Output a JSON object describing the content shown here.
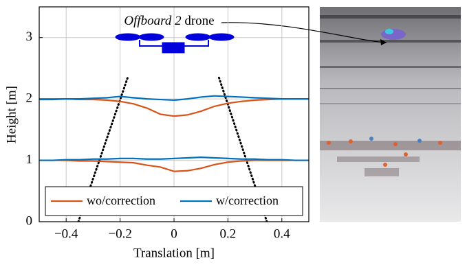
{
  "chart_data": {
    "type": "line",
    "annotation": [
      "Offboard 2",
      "drone"
    ],
    "xlabel": "Translation [m]",
    "ylabel": "Height [m]",
    "x": [
      -0.5,
      -0.45,
      -0.4,
      -0.35,
      -0.3,
      -0.25,
      -0.2,
      -0.15,
      -0.1,
      -0.05,
      0,
      0.05,
      0.1,
      0.15,
      0.2,
      0.25,
      0.3,
      0.35,
      0.4,
      0.45,
      0.5
    ],
    "series": [
      {
        "name": "wo/correction",
        "color": "#d95319",
        "lines": [
          {
            "values": [
              2.0,
              2.0,
              2.0,
              1.99,
              1.99,
              1.98,
              1.96,
              1.92,
              1.85,
              1.75,
              1.72,
              1.74,
              1.8,
              1.88,
              1.93,
              1.96,
              1.98,
              1.99,
              2.0,
              2.0,
              2.0
            ]
          },
          {
            "values": [
              1.0,
              1.0,
              1.0,
              0.99,
              0.99,
              0.98,
              0.97,
              0.96,
              0.92,
              0.89,
              0.82,
              0.83,
              0.87,
              0.93,
              0.97,
              0.99,
              1.0,
              1.0,
              1.0,
              1.0,
              1.0
            ]
          }
        ]
      },
      {
        "name": "w/correction",
        "color": "#0072bd",
        "lines": [
          {
            "values": [
              1.99,
              1.99,
              2.0,
              2.0,
              2.01,
              2.02,
              2.04,
              2.02,
              2.0,
              1.99,
              1.98,
              2.0,
              2.03,
              2.05,
              2.04,
              2.03,
              2.02,
              2.01,
              2.0,
              2.0,
              2.0
            ]
          },
          {
            "values": [
              1.0,
              1.0,
              1.01,
              1.01,
              1.02,
              1.02,
              1.03,
              1.03,
              1.02,
              1.02,
              1.03,
              1.04,
              1.05,
              1.04,
              1.03,
              1.02,
              1.02,
              1.01,
              1.01,
              1.0,
              1.0
            ]
          }
        ]
      }
    ],
    "xlim": [
      -0.5,
      0.5
    ],
    "ylim": [
      0,
      3.5
    ],
    "xticks": [
      {
        "value": -0.4,
        "label": "−0.4"
      },
      {
        "value": -0.2,
        "label": "−0.2"
      },
      0,
      0.2,
      0.4
    ],
    "yticks": [
      0,
      1,
      2,
      3
    ],
    "grid": true
  }
}
